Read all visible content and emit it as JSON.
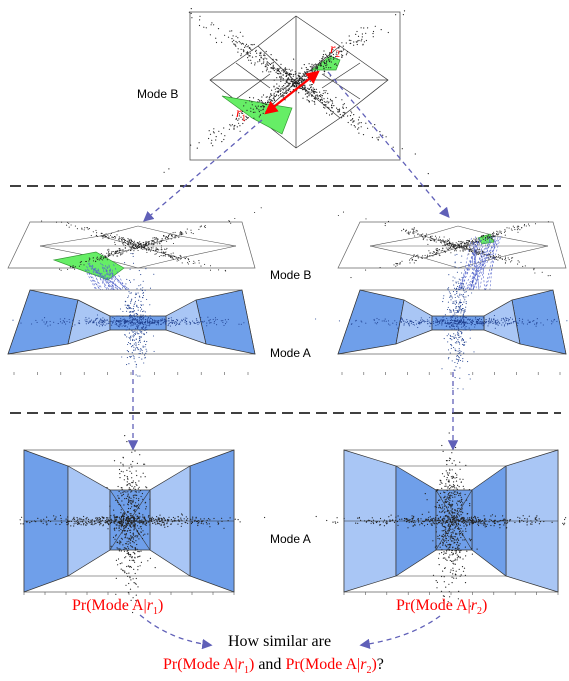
{
  "labels": {
    "mode_b_top": "Mode B",
    "mode_b_mid": "Mode B",
    "mode_a_mid": "Mode A",
    "mode_a_bottom": "Mode A",
    "r1": "r",
    "r1_sub": "1",
    "r2": "r",
    "r2_sub": "2"
  },
  "formulas": {
    "left_prefix": "Pr(Mode A|",
    "left_var": "r",
    "left_sub": "1",
    "left_suffix": ")",
    "right_prefix": "Pr(Mode A|",
    "right_var": "r",
    "right_sub": "2",
    "right_suffix": ")"
  },
  "question": {
    "line1": "How similar are",
    "part1_prefix": "Pr(Mode A|",
    "part1_var": "r",
    "part1_sub": "1",
    "part1_suffix": ")",
    "and": " and ",
    "part2_prefix": "Pr(Mode A|",
    "part2_var": "r",
    "part2_sub": "2",
    "part2_suffix": ")",
    "end": "?"
  },
  "colors": {
    "region_green": "#66ee66",
    "region_blue": "#6f9fea",
    "region_blue_light": "#a9c6f5",
    "arrow_red": "#ff0000",
    "arrow_dashed": "#6060b8",
    "scatter": "#222222",
    "text_red": "#ff0000"
  }
}
